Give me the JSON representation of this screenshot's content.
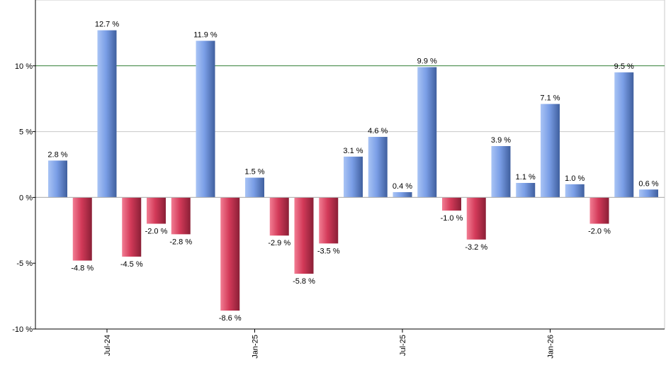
{
  "chart_data": {
    "type": "bar",
    "title": "",
    "xlabel": "",
    "ylabel": "",
    "ylim": [
      -10,
      15
    ],
    "yticks": [
      -10,
      -5,
      0,
      5,
      10
    ],
    "ytick_labels": [
      "-10 %",
      "-5 %",
      "0 %",
      "5 %",
      "10 %"
    ],
    "reference_line": 10,
    "grid": true,
    "x_tick_labels": [
      {
        "index": 2,
        "label": "Jul-24"
      },
      {
        "index": 8,
        "label": "Jan-25"
      },
      {
        "index": 14,
        "label": "Jul-25"
      },
      {
        "index": 20,
        "label": "Jan-26"
      }
    ],
    "values": [
      2.8,
      -4.8,
      12.7,
      -4.5,
      -2.0,
      -2.8,
      11.9,
      -8.6,
      1.5,
      -2.9,
      -5.8,
      -3.5,
      3.1,
      4.6,
      0.4,
      9.9,
      -1.0,
      -3.2,
      3.9,
      1.1,
      7.1,
      1.0,
      -2.0,
      9.5,
      0.6
    ],
    "value_labels": [
      "2.8 %",
      "-4.8 %",
      "12.7 %",
      "-4.5 %",
      "-2.0 %",
      "-2.8 %",
      "11.9 %",
      "-8.6 %",
      "1.5 %",
      "-2.9 %",
      "-5.8 %",
      "-3.5 %",
      "3.1 %",
      "4.6 %",
      "0.4 %",
      "9.9 %",
      "-1.0 %",
      "-3.2 %",
      "3.9 %",
      "1.1 %",
      "7.1 %",
      "1.0 %",
      "-2.0 %",
      "9.5 %",
      "0.6 %"
    ],
    "colors": {
      "positive": "#6f95dd",
      "negative": "#cc3352",
      "reference_line": "#2e7d32",
      "grid": "#c8c8c8",
      "axis": "#000000"
    }
  }
}
